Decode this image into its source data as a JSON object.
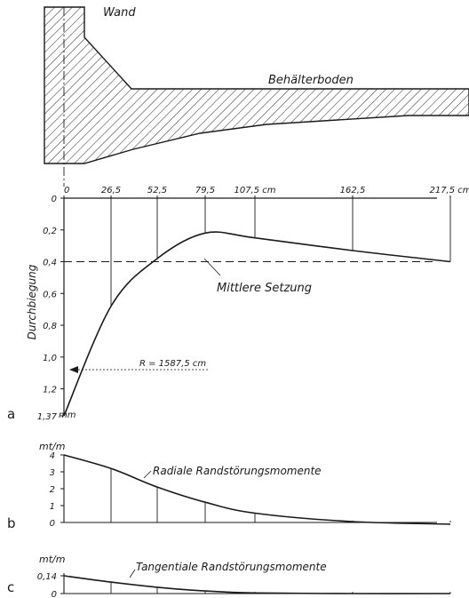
{
  "section": {
    "wall_label": "Wand",
    "floor_label": "Behälterboden"
  },
  "panel_a": {
    "letter": "a",
    "x_ticks": [
      "0",
      "26,5",
      "52,5",
      "79,5",
      "107,5 cm",
      "162,5",
      "217,5 cm"
    ],
    "y_ticks": [
      "0",
      "0,2",
      "0,4",
      "0,6",
      "0,8",
      "1,0",
      "1,2",
      "1,37"
    ],
    "y_unit": "mm",
    "ylabel": "Durchbiegung",
    "mean_label": "Mittlere Setzung",
    "radius_label": "R = 1587,5 cm"
  },
  "panel_b": {
    "letter": "b",
    "unit": "mt/m",
    "y_ticks": [
      "4",
      "3",
      "2",
      "1",
      "0"
    ],
    "label": "Radiale Randstörungsmomente"
  },
  "panel_c": {
    "letter": "c",
    "unit": "mt/m",
    "y_ticks": [
      "0,14",
      "0"
    ],
    "label": "Tangentiale Randstörungsmomente"
  },
  "chart_data": [
    {
      "type": "line",
      "x": [
        0,
        26.5,
        52.5,
        79.5,
        107.5,
        162.5,
        217.5
      ],
      "values": [
        1.37,
        0.68,
        0.38,
        0.22,
        0.25,
        0.33,
        0.4
      ],
      "mean_settlement": 0.4,
      "ylim": [
        0,
        1.37
      ],
      "y_inverted": true
    },
    {
      "type": "line",
      "x": [
        0,
        26.5,
        52.5,
        79.5,
        107.5,
        162.5,
        217.5
      ],
      "values": [
        4.0,
        3.2,
        2.1,
        1.2,
        0.55,
        0.05,
        -0.1
      ],
      "ylim": [
        0,
        4
      ]
    },
    {
      "type": "line",
      "x": [
        0,
        26.5,
        52.5,
        79.5,
        107.5,
        162.5,
        217.5
      ],
      "values": [
        0.14,
        0.09,
        0.05,
        0.02,
        0.005,
        0.0,
        0.0
      ],
      "ylim": [
        0,
        0.14
      ]
    }
  ]
}
